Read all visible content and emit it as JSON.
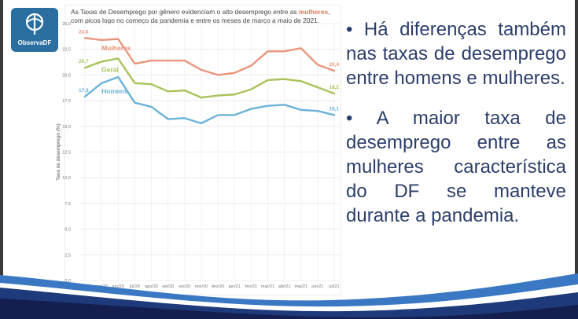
{
  "logo": {
    "text": "ObservaDF",
    "icon": "observadf-logo-icon"
  },
  "chart_title": {
    "before": "As Taxas de Desemprego por gênero evidenciam o alto desemprego entre as ",
    "highlight": "mulheres",
    "after": ", com picos logo no começo da pandemia e entre os meses de março a maio de 2021."
  },
  "bullets": [
    "• Há diferenças também nas taxas de desemprego entre homens e mulheres.",
    "• A maior taxa de desemprego entre as mulheres característica do DF se manteve durante a pandemia."
  ],
  "colors": {
    "mulheres": "#e9957c",
    "geral": "#a9c25a",
    "homens": "#6bb3d9",
    "bullet_text": "#2c3e6b",
    "logo_bg": "#2a6fa0"
  },
  "chart_data": {
    "type": "line",
    "ylabel": "Taxa de desemprego (%)",
    "ylim": [
      0,
      25
    ],
    "yticks": [
      "0,0",
      "2,5",
      "5,0",
      "7,5",
      "10,0",
      "12,5",
      "15,0",
      "17,5",
      "20,0",
      "22,5",
      "25,0"
    ],
    "categories": [
      "abr/20",
      "mai/20",
      "jun/20",
      "jul/20",
      "ago/20",
      "set/20",
      "out/20",
      "nov/20",
      "dez/20",
      "jan/21",
      "fev/21",
      "mar/21",
      "abr/21",
      "mai/21",
      "jun/21",
      "jul/21"
    ],
    "grid": true,
    "series": [
      {
        "name": "Mulheres",
        "color": "#e9957c",
        "values": [
          23.6,
          23.4,
          23.5,
          21.1,
          21.4,
          21.4,
          21.4,
          20.5,
          20.0,
          20.2,
          20.9,
          22.3,
          22.3,
          22.6,
          21.0,
          20.4
        ],
        "start_label": "23,6",
        "end_label": "20,4"
      },
      {
        "name": "Geral",
        "color": "#a9c25a",
        "values": [
          20.7,
          21.3,
          21.6,
          19.2,
          19.1,
          18.4,
          18.5,
          17.8,
          18.0,
          18.1,
          18.6,
          19.5,
          19.6,
          19.4,
          18.8,
          18.2
        ],
        "start_label": "20,7",
        "end_label": "18,2"
      },
      {
        "name": "Homens",
        "color": "#6bb3d9",
        "values": [
          17.9,
          19.2,
          19.8,
          17.3,
          16.9,
          15.7,
          15.8,
          15.3,
          16.1,
          16.1,
          16.7,
          17.0,
          17.1,
          16.6,
          16.5,
          16.1
        ],
        "start_label": "17,9",
        "end_label": "16,1"
      }
    ]
  }
}
